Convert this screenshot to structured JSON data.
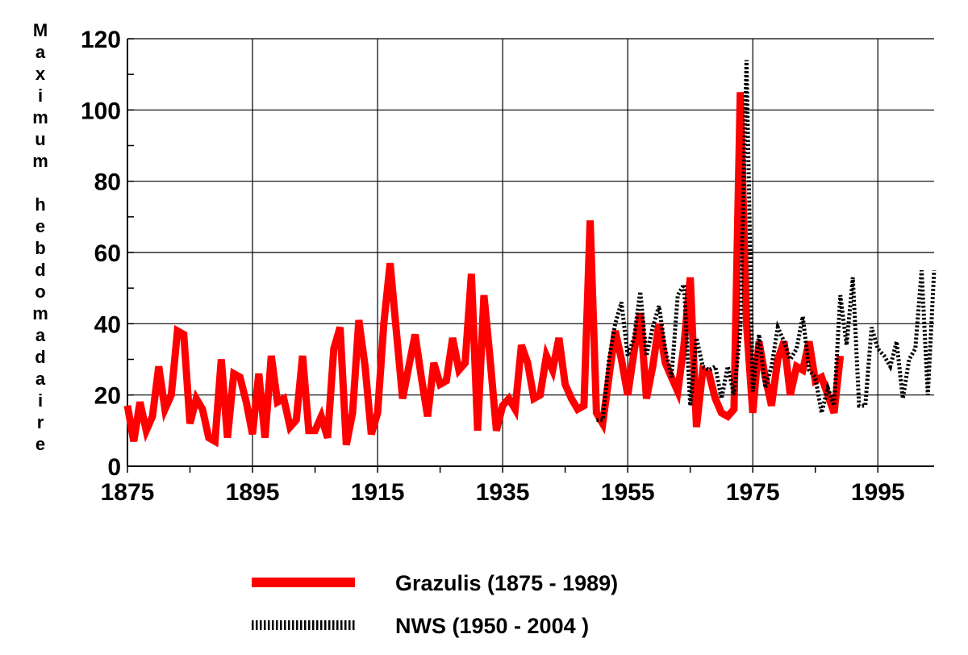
{
  "chart_data": {
    "type": "line",
    "title": "",
    "xlabel": "",
    "ylabel": "Maximum hebdomadaire",
    "xlim": [
      1875,
      2004
    ],
    "ylim": [
      0,
      120
    ],
    "grid": true,
    "x_ticks": [
      "1875",
      "1895",
      "1915",
      "1935",
      "1955",
      "1975",
      "1995"
    ],
    "y_ticks": [
      "0",
      "20",
      "40",
      "60",
      "80",
      "100",
      "120"
    ],
    "legend_position": "bottom-center",
    "series": [
      {
        "name": "Grazulis (1875 - 1989)",
        "style": "solid",
        "color": "#ff0000",
        "x": [
          1875,
          1876,
          1877,
          1878,
          1879,
          1880,
          1881,
          1882,
          1883,
          1884,
          1885,
          1886,
          1887,
          1888,
          1889,
          1890,
          1891,
          1892,
          1893,
          1894,
          1895,
          1896,
          1897,
          1898,
          1899,
          1900,
          1901,
          1902,
          1903,
          1904,
          1905,
          1906,
          1907,
          1908,
          1909,
          1910,
          1911,
          1912,
          1913,
          1914,
          1915,
          1916,
          1917,
          1918,
          1919,
          1920,
          1921,
          1922,
          1923,
          1924,
          1925,
          1926,
          1927,
          1928,
          1929,
          1930,
          1931,
          1932,
          1933,
          1934,
          1935,
          1936,
          1937,
          1938,
          1939,
          1940,
          1941,
          1942,
          1943,
          1944,
          1945,
          1946,
          1947,
          1948,
          1949,
          1950,
          1951,
          1952,
          1953,
          1954,
          1955,
          1956,
          1957,
          1958,
          1959,
          1960,
          1961,
          1962,
          1963,
          1964,
          1965,
          1966,
          1967,
          1968,
          1969,
          1970,
          1971,
          1972,
          1973,
          1974,
          1975,
          1976,
          1977,
          1978,
          1979,
          1980,
          1981,
          1982,
          1983,
          1984,
          1985,
          1986,
          1987,
          1988,
          1989
        ],
        "values": [
          17,
          7,
          18,
          10,
          14,
          28,
          16,
          20,
          38,
          37,
          12,
          19,
          16,
          8,
          7,
          30,
          8,
          26,
          25,
          18,
          9,
          26,
          8,
          31,
          18,
          19,
          11,
          13,
          31,
          10,
          10,
          14,
          8,
          33,
          39,
          6,
          15,
          41,
          28,
          9,
          15,
          40,
          57,
          38,
          19,
          28,
          37,
          25,
          14,
          29,
          23,
          24,
          36,
          27,
          29,
          54,
          10,
          48,
          30,
          10,
          17,
          19,
          16,
          34,
          29,
          19,
          20,
          31,
          27,
          36,
          23,
          19,
          16,
          17,
          69,
          15,
          12,
          25,
          38,
          30,
          20,
          32,
          43,
          19,
          28,
          40,
          29,
          25,
          21,
          34,
          53,
          11,
          27,
          26,
          19,
          15,
          14,
          16,
          105,
          40,
          15,
          35,
          25,
          17,
          30,
          35,
          20,
          28,
          27,
          35,
          24,
          25,
          20,
          15,
          31
        ]
      },
      {
        "name": "NWS (1950 - 2004 )",
        "style": "dotted",
        "color": "#000000",
        "x": [
          1950,
          1951,
          1952,
          1953,
          1954,
          1955,
          1956,
          1957,
          1958,
          1959,
          1960,
          1961,
          1962,
          1963,
          1964,
          1965,
          1966,
          1967,
          1968,
          1969,
          1970,
          1971,
          1972,
          1973,
          1974,
          1975,
          1976,
          1977,
          1978,
          1979,
          1980,
          1981,
          1982,
          1983,
          1984,
          1985,
          1986,
          1987,
          1988,
          1989,
          1990,
          1991,
          1992,
          1993,
          1994,
          1995,
          1996,
          1997,
          1998,
          1999,
          2000,
          2001,
          2002,
          2003,
          2004
        ],
        "values": [
          13,
          13,
          30,
          40,
          46,
          31,
          36,
          49,
          31,
          39,
          45,
          33,
          25,
          48,
          51,
          17,
          36,
          28,
          27,
          28,
          19,
          28,
          20,
          38,
          114,
          21,
          37,
          22,
          28,
          39,
          35,
          30,
          33,
          42,
          27,
          25,
          15,
          22,
          17,
          48,
          34,
          53,
          17,
          17,
          39,
          33,
          31,
          28,
          35,
          19,
          30,
          33,
          55,
          20,
          55
        ]
      }
    ]
  }
}
